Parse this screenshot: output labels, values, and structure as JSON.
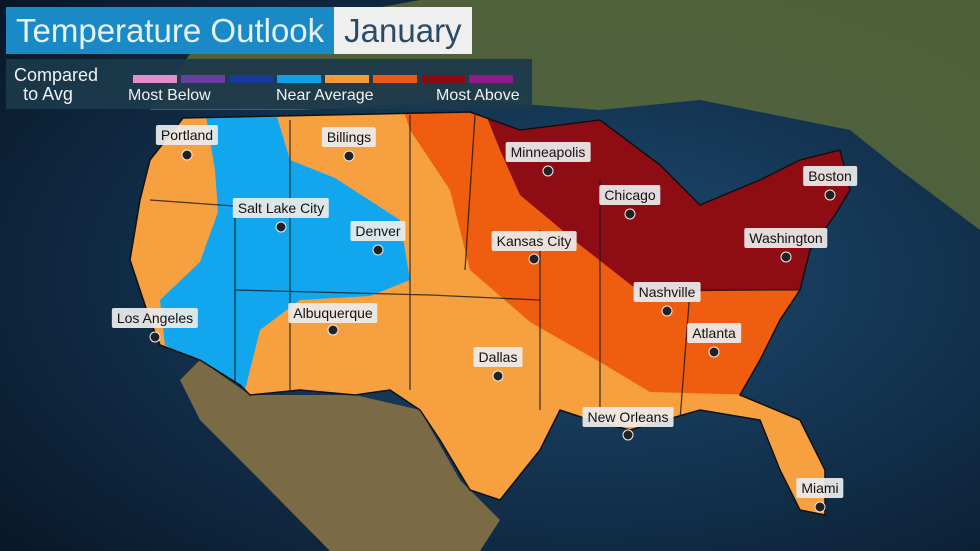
{
  "title": "Temperature Outlook",
  "month": "January",
  "legend": {
    "label_line1": "Compared",
    "label_line2": "to Avg",
    "left": "Most Below",
    "middle": "Near Average",
    "right": "Most Above",
    "colors": [
      "#e58ccc",
      "#6a3fa2",
      "#16399c",
      "#0fa0e8",
      "#f29a3a",
      "#ee5a12",
      "#8c0a12",
      "#8e1a8e"
    ]
  },
  "zone_colors": {
    "near_average_cool": "#12a6ee",
    "above": "#f7a040",
    "well_above": "#ef5d10",
    "most_above": "#8e0c14"
  },
  "cities": [
    {
      "name": "Portland"
    },
    {
      "name": "Billings"
    },
    {
      "name": "Minneapolis"
    },
    {
      "name": "Boston"
    },
    {
      "name": "Chicago"
    },
    {
      "name": "Salt Lake City"
    },
    {
      "name": "Denver"
    },
    {
      "name": "Kansas City"
    },
    {
      "name": "Washington"
    },
    {
      "name": "Nashville"
    },
    {
      "name": "Los Angeles"
    },
    {
      "name": "Albuquerque"
    },
    {
      "name": "Atlanta"
    },
    {
      "name": "Dallas"
    },
    {
      "name": "New Orleans"
    },
    {
      "name": "Miami"
    }
  ]
}
